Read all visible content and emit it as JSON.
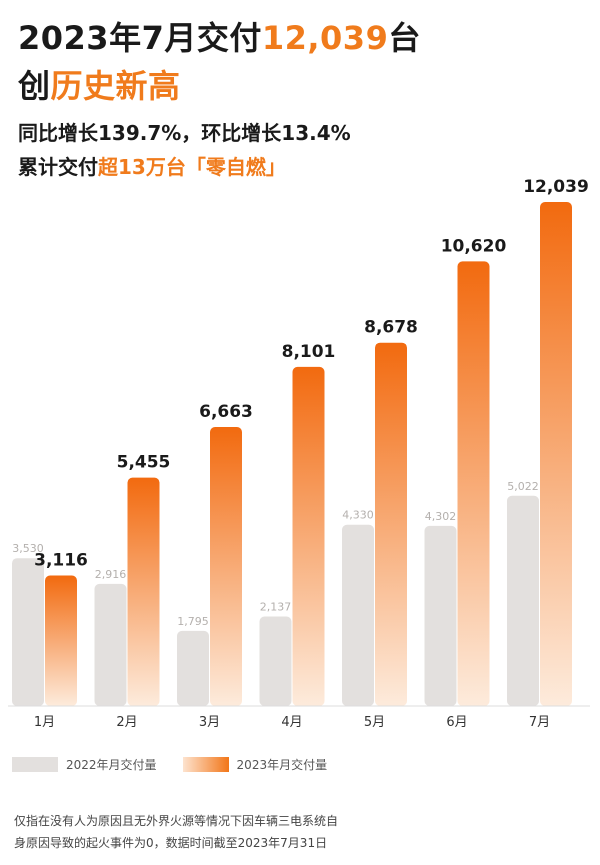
{
  "headline": {
    "line1_prefix": "2023年7月交付",
    "line1_number": "12,039",
    "line1_suffix": "台",
    "line2_prefix": "创",
    "line2_accent": "历史新高",
    "line3": "同比增长139.7%，环比增长13.4%",
    "line4_prefix": "累计交付",
    "line4_accent": "超13万台「零自燃」"
  },
  "colors": {
    "accent": "#f07b1c",
    "bar_2022": "#e3e0de",
    "bar_2023_top": "#f26a0f",
    "bar_2023_bottom": "#fdebdc"
  },
  "chart_data": {
    "type": "bar",
    "categories": [
      "1月",
      "2月",
      "3月",
      "4月",
      "5月",
      "6月",
      "7月"
    ],
    "series": [
      {
        "name": "2022年月交付量",
        "values": [
          3530,
          2916,
          1795,
          2137,
          4330,
          4302,
          5022
        ],
        "labels": [
          "3,530",
          "2,916",
          "1,795",
          "2,137",
          "4,330",
          "4,302",
          "5,022"
        ]
      },
      {
        "name": "2023年月交付量",
        "values": [
          3116,
          5455,
          6663,
          8101,
          8678,
          10620,
          12039
        ],
        "labels": [
          "3,116",
          "5,455",
          "6,663",
          "8,101",
          "8,678",
          "10,620",
          "12,039"
        ]
      }
    ],
    "ylim": [
      0,
      12039
    ],
    "grid": false,
    "legend_position": "bottom-left"
  },
  "footnote": {
    "line1": "仅指在没有人为原因且无外界火源等情况下因车辆三电系统自",
    "line2": "身原因导致的起火事件为0，数据时间截至2023年7月31日"
  }
}
